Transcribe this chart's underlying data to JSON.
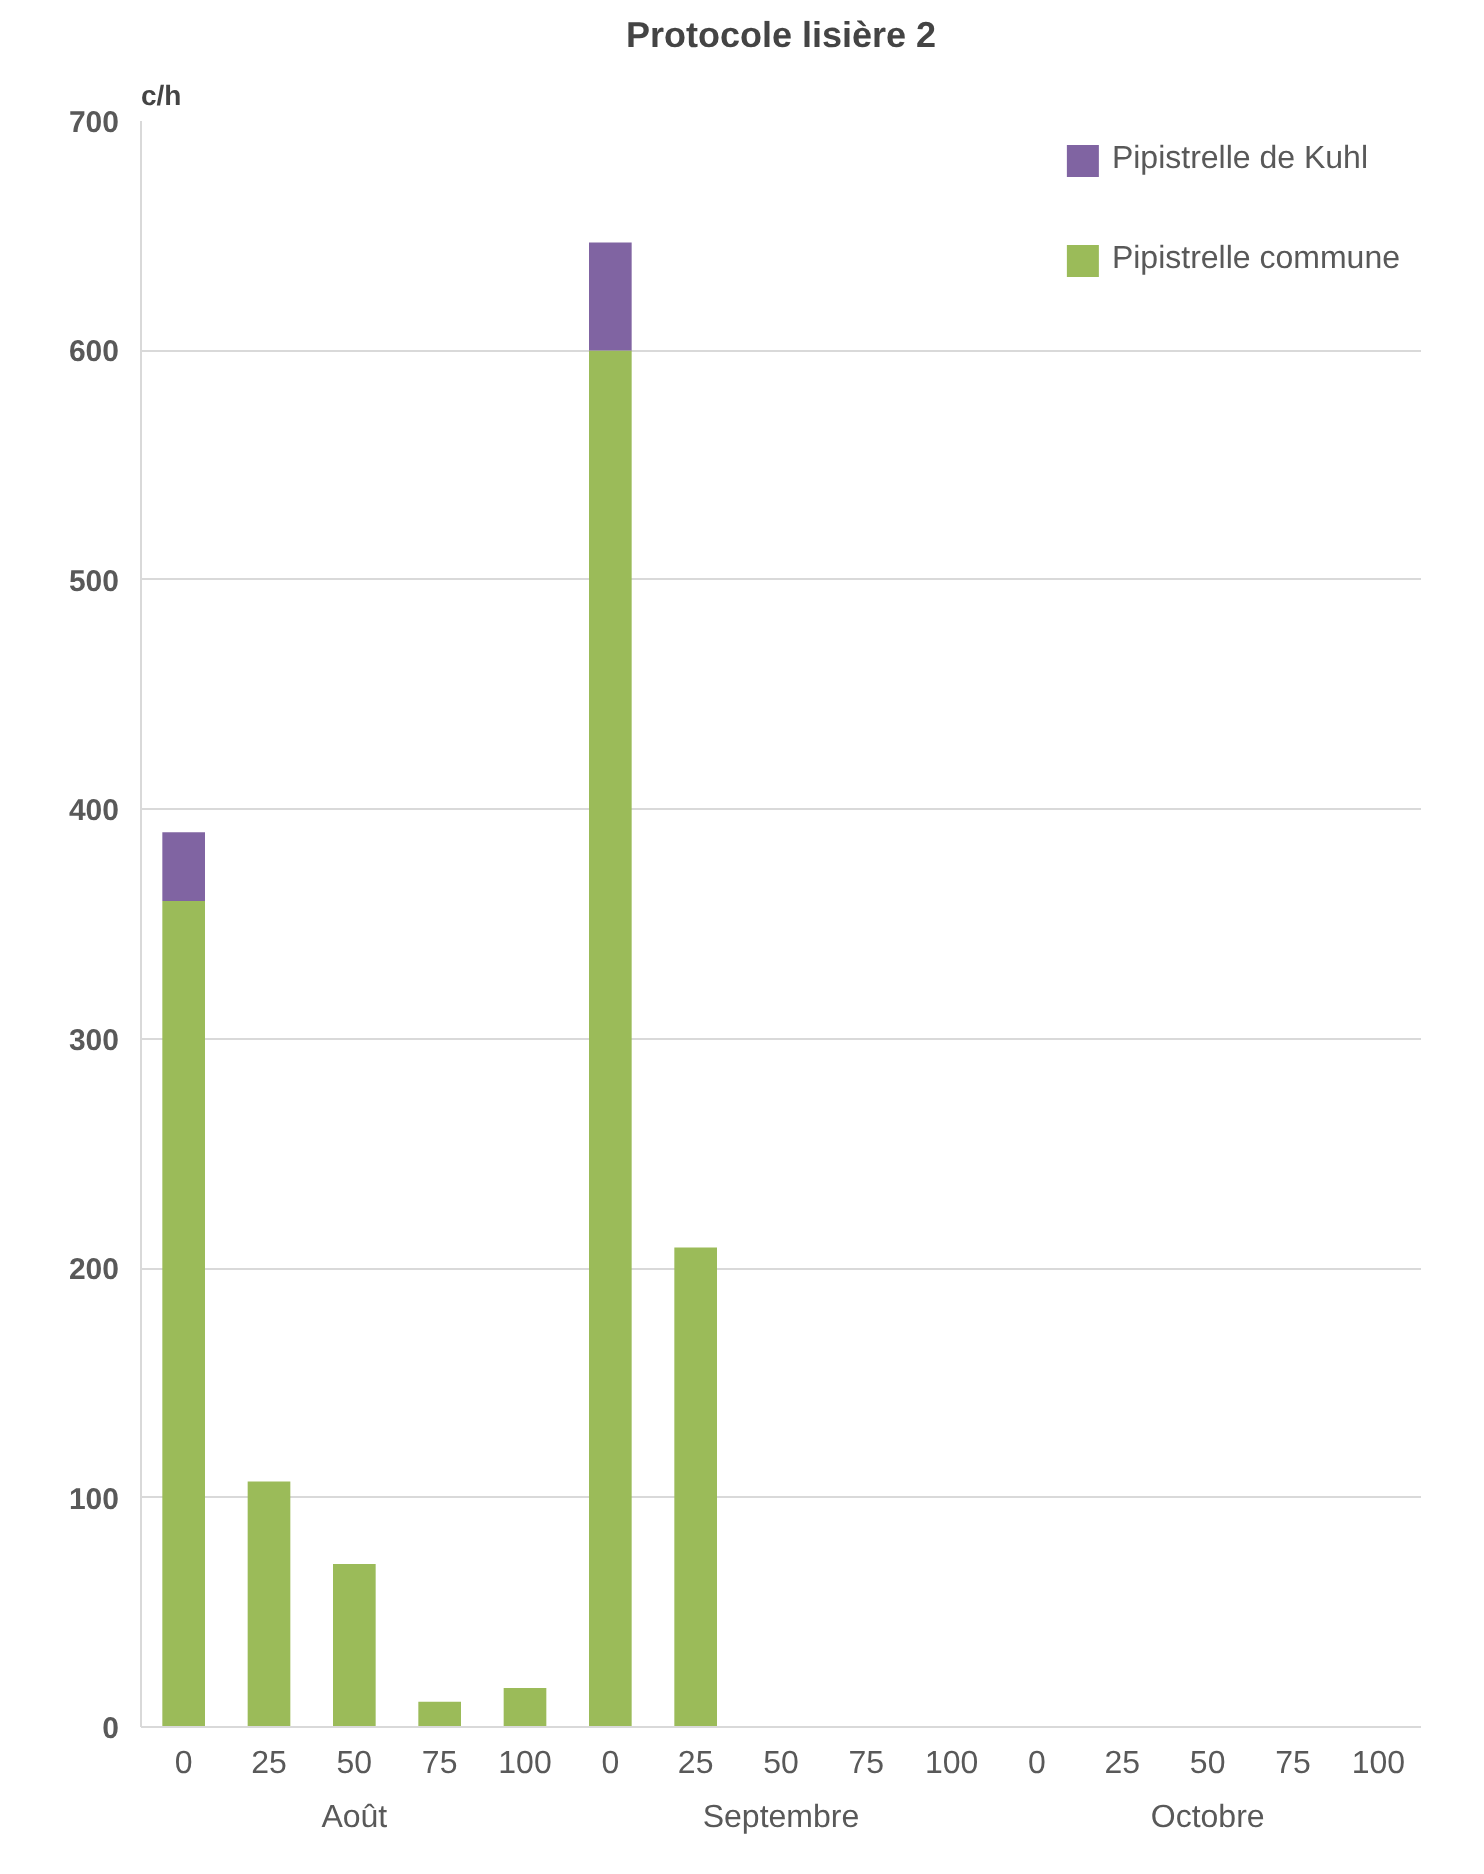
{
  "chart_data": {
    "type": "bar",
    "title": "Protocole lisière 2",
    "ylabel": "c/h",
    "categories": [
      "0",
      "25",
      "50",
      "75",
      "100",
      "0",
      "25",
      "50",
      "75",
      "100",
      "0",
      "25",
      "50",
      "75",
      "100"
    ],
    "stacked": true,
    "series": [
      {
        "name": "Pipistrelle commune",
        "color": "#9bbb59",
        "values": [
          360,
          107,
          71,
          11,
          17,
          600,
          209,
          0,
          0,
          0,
          0,
          0,
          0,
          0,
          0
        ]
      },
      {
        "name": "Pipistrelle de Kuhl",
        "color": "#8064a2",
        "values": [
          30,
          0,
          0,
          0,
          0,
          47,
          0,
          0,
          0,
          0,
          0,
          0,
          0,
          0,
          0
        ]
      }
    ],
    "annotations": [
      "Août",
      "Septembre",
      "Octobre"
    ],
    "ylim": [
      0,
      700
    ],
    "yticks": [
      0,
      100,
      200,
      300,
      400,
      500,
      600,
      700
    ],
    "grid": "y",
    "legend": "top right"
  }
}
